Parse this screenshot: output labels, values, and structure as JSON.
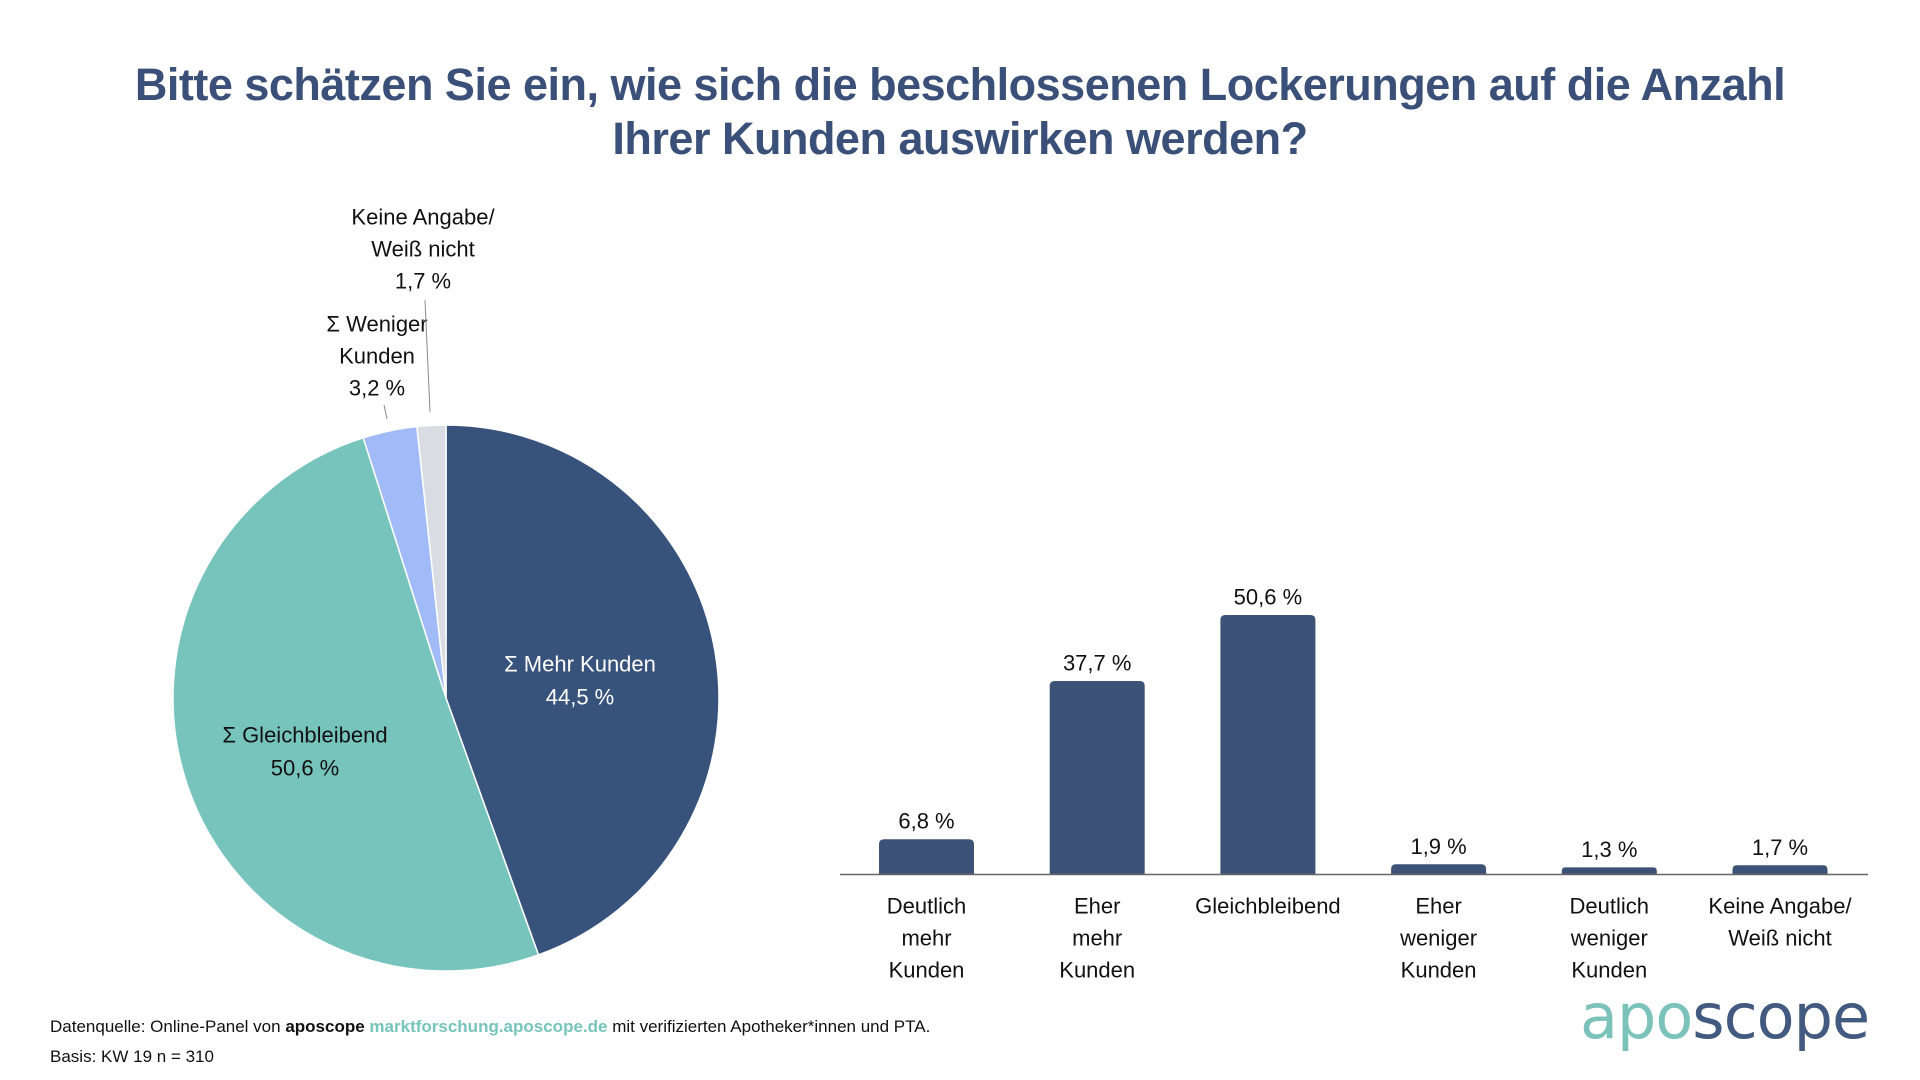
{
  "title": {
    "line1": "Bitte schätzen Sie ein, wie sich die beschlossenen Lockerungen auf die Anzahl",
    "line2": "Ihrer Kunden auswirken werden?"
  },
  "colors": {
    "title": "#3b5078",
    "bar": "#3d5277",
    "pie_mehr": "#37527b",
    "pie_gleich": "#76c4bb",
    "pie_weniger": "#a0bbf7",
    "pie_keine": "#d9dce3",
    "axis": "#666666",
    "link": "#76c4bb"
  },
  "chart_data": [
    {
      "type": "pie",
      "title": "",
      "start": "top, clockwise",
      "slices": [
        {
          "label": "Σ Mehr Kunden",
          "value": 44.5,
          "display": "44,5 %",
          "color": "#37527b",
          "label_color": "#ffffff"
        },
        {
          "label": "Σ Gleichbleibend",
          "value": 50.6,
          "display": "50,6 %",
          "color": "#76c4bb",
          "label_color": "#111111"
        },
        {
          "label": "Σ Weniger Kunden",
          "label_lines": [
            "Σ Weniger",
            "Kunden"
          ],
          "value": 3.2,
          "display": "3,2 %",
          "color": "#a0bbf7",
          "label_color": "#111111"
        },
        {
          "label": "Keine Angabe/ Weiß nicht",
          "label_lines": [
            "Keine Angabe/",
            "Weiß nicht"
          ],
          "value": 1.7,
          "display": "1,7 %",
          "color": "#d9dce3",
          "label_color": "#111111"
        }
      ]
    },
    {
      "type": "bar",
      "title": "",
      "xlabel": "",
      "ylabel": "",
      "ylim": [
        0,
        55
      ],
      "grid": false,
      "unit": "%",
      "categories": [
        [
          "Deutlich",
          "mehr",
          "Kunden"
        ],
        [
          "Eher",
          "mehr",
          "Kunden"
        ],
        [
          "Gleichbleibend"
        ],
        [
          "Eher",
          "weniger",
          "Kunden"
        ],
        [
          "Deutlich",
          "weniger",
          "Kunden"
        ],
        [
          "Keine Angabe/",
          "Weiß nicht"
        ]
      ],
      "values": [
        6.8,
        37.7,
        50.6,
        1.9,
        1.3,
        1.7
      ],
      "data_labels": [
        "6,8 %",
        "37,7 %",
        "50,6 %",
        "1,9 %",
        "1,3 %",
        "1,7 %"
      ]
    }
  ],
  "footer": {
    "source_prefix": "Datenquelle: Online-Panel von ",
    "source_brand": "aposcope",
    "source_link": "marktforschung.aposcope.de",
    "source_suffix": " mit verifizierten Apotheker*innen und PTA.",
    "basis": "Basis: KW 19 n = 310"
  },
  "logo": {
    "part1": "apo",
    "part2": "scope"
  }
}
